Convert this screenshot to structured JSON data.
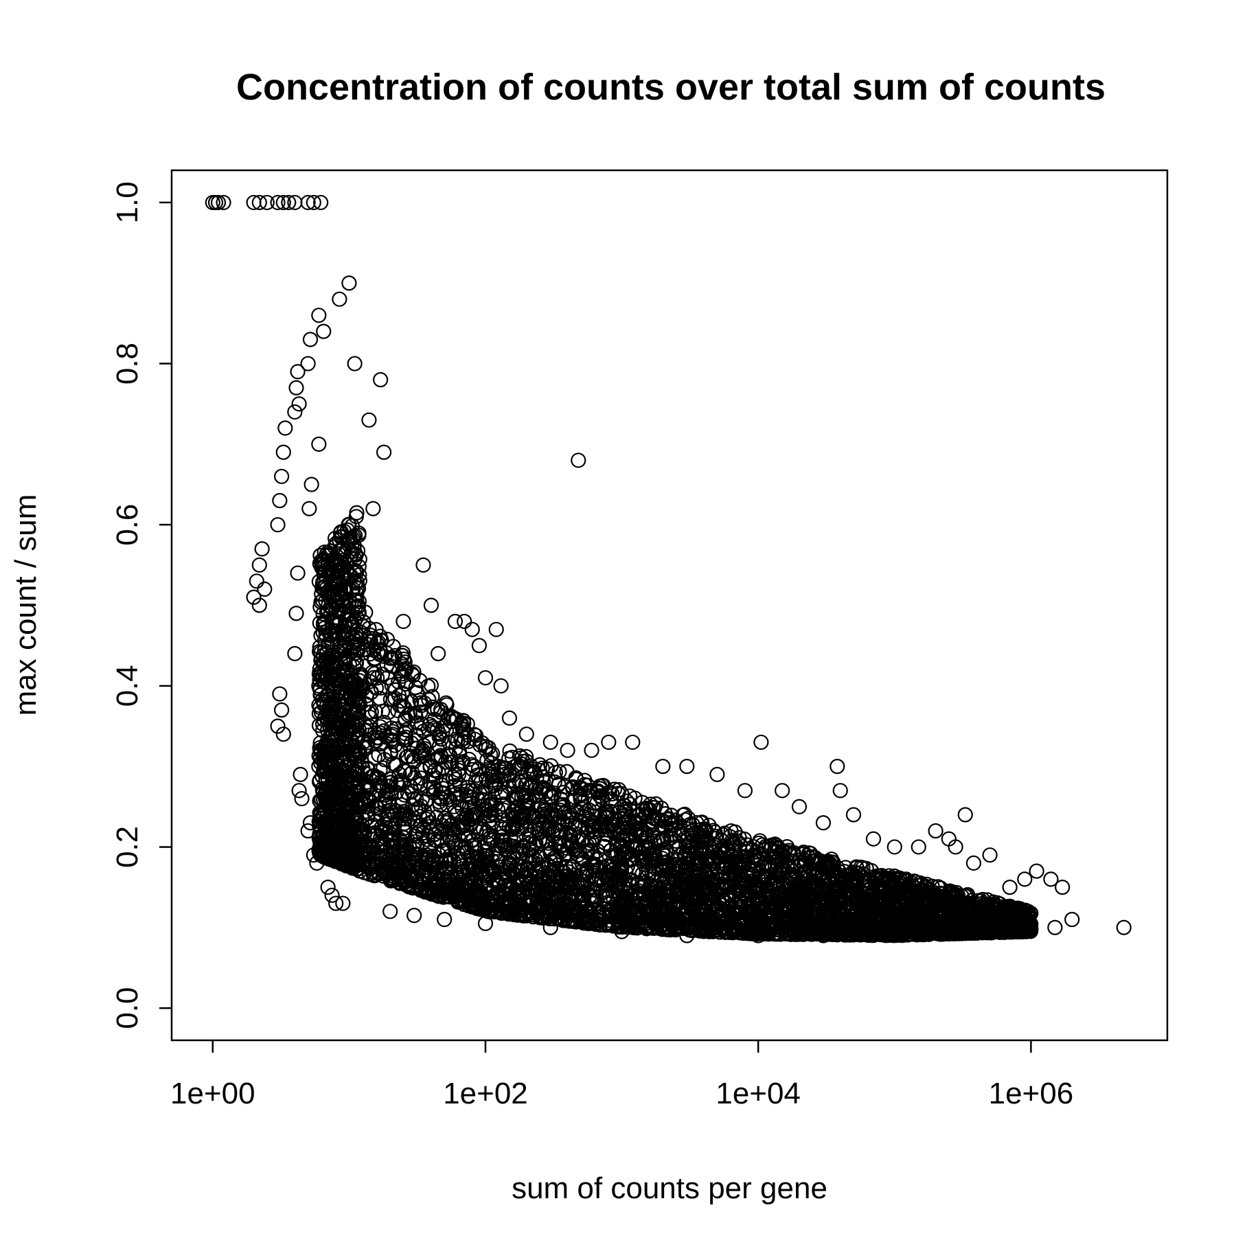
{
  "chart_data": {
    "type": "scatter",
    "title": "Concentration of counts over total sum of counts",
    "xlabel": "sum of counts per gene",
    "ylabel": "max count / sum",
    "x_scale": "log10",
    "xlim": [
      0.5,
      10000000
    ],
    "ylim": [
      -0.04,
      1.04
    ],
    "x_ticks": [
      {
        "value": 1,
        "label": "1e+00"
      },
      {
        "value": 100,
        "label": "1e+02"
      },
      {
        "value": 10000,
        "label": "1e+04"
      },
      {
        "value": 1000000,
        "label": "1e+06"
      }
    ],
    "y_ticks": [
      {
        "value": 0.0,
        "label": "0.0"
      },
      {
        "value": 0.2,
        "label": "0.2"
      },
      {
        "value": 0.4,
        "label": "0.4"
      },
      {
        "value": 0.6,
        "label": "0.6"
      },
      {
        "value": 0.8,
        "label": "0.8"
      },
      {
        "value": 1.0,
        "label": "1.0"
      }
    ],
    "grid": false,
    "legend": "none",
    "marker": "open-circle",
    "points": [
      [
        1,
        1.0
      ],
      [
        1.05,
        1.0
      ],
      [
        1.1,
        1.0
      ],
      [
        1.2,
        1.0
      ],
      [
        2,
        1.0
      ],
      [
        2.2,
        1.0
      ],
      [
        2.5,
        1.0
      ],
      [
        3,
        1.0
      ],
      [
        3.3,
        1.0
      ],
      [
        3.6,
        1.0
      ],
      [
        4,
        1.0
      ],
      [
        5,
        1.0
      ],
      [
        5.5,
        1.0
      ],
      [
        6.2,
        1.0
      ],
      [
        2.0,
        0.51
      ],
      [
        2.1,
        0.53
      ],
      [
        2.2,
        0.55
      ],
      [
        2.3,
        0.57
      ],
      [
        2.2,
        0.5
      ],
      [
        2.4,
        0.52
      ],
      [
        3.0,
        0.6
      ],
      [
        3.1,
        0.63
      ],
      [
        3.2,
        0.66
      ],
      [
        3.3,
        0.69
      ],
      [
        3.4,
        0.72
      ],
      [
        3.0,
        0.35
      ],
      [
        3.2,
        0.37
      ],
      [
        3.1,
        0.39
      ],
      [
        3.3,
        0.34
      ],
      [
        4.0,
        0.74
      ],
      [
        4.1,
        0.77
      ],
      [
        4.2,
        0.79
      ],
      [
        4.3,
        0.75
      ],
      [
        4.0,
        0.44
      ],
      [
        4.1,
        0.49
      ],
      [
        4.2,
        0.54
      ],
      [
        4.3,
        0.27
      ],
      [
        4.4,
        0.29
      ],
      [
        4.5,
        0.26
      ],
      [
        5.0,
        0.8
      ],
      [
        5.2,
        0.83
      ],
      [
        5.1,
        0.62
      ],
      [
        5.3,
        0.65
      ],
      [
        5.0,
        0.22
      ],
      [
        5.2,
        0.23
      ],
      [
        5.5,
        0.19
      ],
      [
        5.8,
        0.18
      ],
      [
        6.0,
        0.86
      ],
      [
        6.5,
        0.84
      ],
      [
        6,
        0.7
      ],
      [
        6,
        0.4
      ],
      [
        6,
        0.3
      ],
      [
        7,
        0.15
      ],
      [
        7.5,
        0.14
      ],
      [
        8,
        0.13
      ],
      [
        8.5,
        0.88
      ],
      [
        9,
        0.13
      ],
      [
        10,
        0.9
      ],
      [
        11,
        0.8
      ],
      [
        7,
        0.55
      ],
      [
        7,
        0.45
      ],
      [
        8,
        0.35
      ],
      [
        8,
        0.25
      ],
      [
        9,
        0.5
      ],
      [
        10,
        0.6
      ],
      [
        12,
        0.4
      ],
      [
        14,
        0.73
      ],
      [
        15,
        0.62
      ],
      [
        17,
        0.78
      ],
      [
        18,
        0.69
      ],
      [
        10,
        0.3
      ],
      [
        12,
        0.22
      ],
      [
        15,
        0.18
      ],
      [
        20,
        0.28
      ],
      [
        25,
        0.48
      ],
      [
        30,
        0.26
      ],
      [
        35,
        0.55
      ],
      [
        40,
        0.5
      ],
      [
        45,
        0.44
      ],
      [
        50,
        0.35
      ],
      [
        60,
        0.48
      ],
      [
        70,
        0.48
      ],
      [
        80,
        0.47
      ],
      [
        90,
        0.45
      ],
      [
        100,
        0.41
      ],
      [
        120,
        0.47
      ],
      [
        130,
        0.4
      ],
      [
        150,
        0.36
      ],
      [
        200,
        0.34
      ],
      [
        300,
        0.33
      ],
      [
        400,
        0.32
      ],
      [
        480,
        0.68
      ],
      [
        600,
        0.32
      ],
      [
        800,
        0.33
      ],
      [
        1200,
        0.33
      ],
      [
        2000,
        0.3
      ],
      [
        3000,
        0.3
      ],
      [
        5000,
        0.29
      ],
      [
        8000,
        0.27
      ],
      [
        10500,
        0.33
      ],
      [
        15000,
        0.27
      ],
      [
        20000,
        0.25
      ],
      [
        30000,
        0.23
      ],
      [
        38000,
        0.3
      ],
      [
        40000,
        0.27
      ],
      [
        50000,
        0.24
      ],
      [
        70000,
        0.21
      ],
      [
        100000,
        0.2
      ],
      [
        150000,
        0.2
      ],
      [
        200000,
        0.22
      ],
      [
        250000,
        0.21
      ],
      [
        280000,
        0.2
      ],
      [
        330000,
        0.24
      ],
      [
        380000,
        0.18
      ],
      [
        500000,
        0.19
      ],
      [
        700000,
        0.15
      ],
      [
        900000,
        0.16
      ],
      [
        1100000,
        0.17
      ],
      [
        1400000,
        0.16
      ],
      [
        1700000,
        0.15
      ],
      [
        2000000,
        0.11
      ],
      [
        4800000,
        0.1
      ],
      [
        20,
        0.12
      ],
      [
        30,
        0.115
      ],
      [
        50,
        0.11
      ],
      [
        100,
        0.105
      ],
      [
        300,
        0.1
      ],
      [
        1000,
        0.095
      ],
      [
        3000,
        0.09
      ],
      [
        10000,
        0.09
      ],
      [
        30000,
        0.09
      ],
      [
        100000,
        0.092
      ],
      [
        300000,
        0.095
      ],
      [
        1000000,
        0.098
      ],
      [
        1500000,
        0.1
      ]
    ],
    "density_bands": [
      {
        "x_from": 6,
        "x_to": 12,
        "lower": [
          0.19,
          0.17
        ],
        "upper": [
          0.56,
          0.62
        ]
      },
      {
        "x_from": 12,
        "x_to": 100,
        "lower": [
          0.17,
          0.12
        ],
        "upper": [
          0.5,
          0.33
        ]
      },
      {
        "x_from": 100,
        "x_to": 1000,
        "lower": [
          0.12,
          0.1
        ],
        "upper": [
          0.33,
          0.27
        ]
      },
      {
        "x_from": 1000,
        "x_to": 10000,
        "lower": [
          0.1,
          0.092
        ],
        "upper": [
          0.27,
          0.21
        ]
      },
      {
        "x_from": 10000,
        "x_to": 100000,
        "lower": [
          0.092,
          0.09
        ],
        "upper": [
          0.21,
          0.165
        ]
      },
      {
        "x_from": 100000,
        "x_to": 1000000,
        "lower": [
          0.09,
          0.095
        ],
        "upper": [
          0.165,
          0.12
        ]
      }
    ]
  }
}
